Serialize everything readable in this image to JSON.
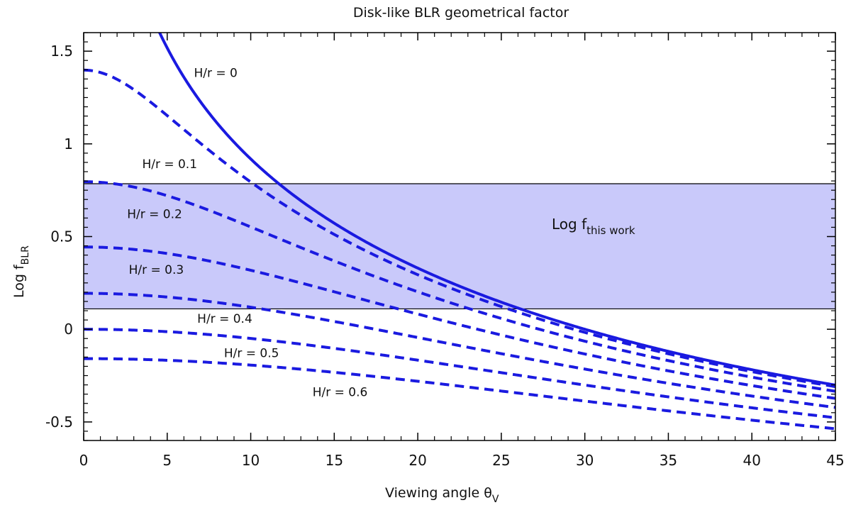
{
  "chart_data": {
    "type": "line",
    "title": "Disk-like BLR geometrical factor",
    "xlabel": {
      "main": "Viewing angle θ",
      "sub": "V"
    },
    "ylabel": {
      "main": "Log f",
      "sub": "BLR"
    },
    "xlim": [
      0,
      45
    ],
    "ylim": [
      -0.6,
      1.6
    ],
    "xticks": [
      0,
      5,
      10,
      15,
      20,
      25,
      30,
      35,
      40,
      45
    ],
    "yticks": [
      -0.5,
      0,
      0.5,
      1,
      1.5
    ],
    "ytick_labels": [
      "-0.5",
      "0",
      "0.5",
      "1",
      "1.5"
    ],
    "grid": false,
    "band": {
      "label_main": "Log f",
      "label_sub": "this work",
      "y_low": 0.11,
      "y_high": 0.785,
      "color": "#c9c9fa"
    },
    "line_color": "#1a1ae0",
    "series": [
      {
        "label": "H/r = 0",
        "h_over_r": 0,
        "style": "solid",
        "label_x": 6.6,
        "label_y": 1.36
      },
      {
        "label": "H/r = 0.1",
        "h_over_r": 0.1,
        "style": "dashed",
        "label_x": 3.5,
        "label_y": 0.87
      },
      {
        "label": "H/r = 0.2",
        "h_over_r": 0.2,
        "style": "dashed",
        "label_x": 2.6,
        "label_y": 0.6
      },
      {
        "label": "H/r = 0.3",
        "h_over_r": 0.3,
        "style": "dashed",
        "label_x": 2.7,
        "label_y": 0.3
      },
      {
        "label": "H/r = 0.4",
        "h_over_r": 0.4,
        "style": "dashed",
        "label_x": 6.8,
        "label_y": 0.035
      },
      {
        "label": "H/r = 0.5",
        "h_over_r": 0.5,
        "style": "dashed",
        "label_x": 8.4,
        "label_y": -0.15
      },
      {
        "label": "H/r = 0.6",
        "h_over_r": 0.6,
        "style": "dashed",
        "label_x": 13.7,
        "label_y": -0.36
      }
    ]
  }
}
